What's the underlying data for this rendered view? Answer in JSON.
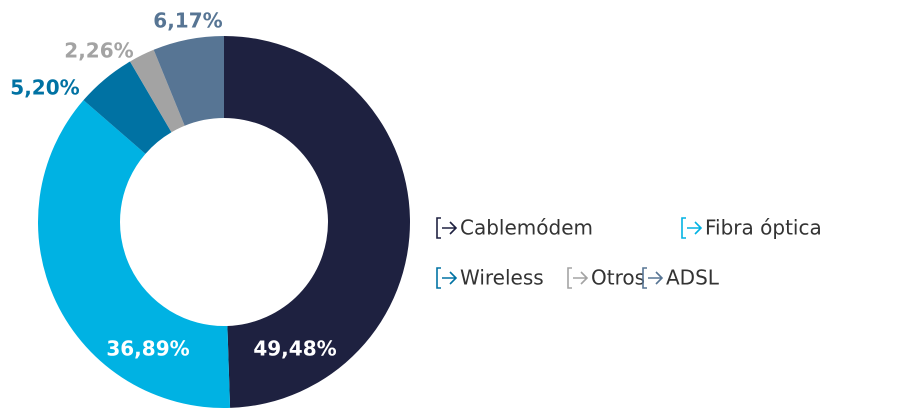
{
  "chart_data": {
    "type": "pie",
    "categories": [
      "Cablemódem",
      "Fibra óptica",
      "Wireless",
      "Otros",
      "ADSL"
    ],
    "values": [
      49.48,
      36.89,
      5.2,
      2.26,
      6.17
    ],
    "value_labels": [
      "49,48%",
      "36,89%",
      "5,20%",
      "2,26%",
      "6,17%"
    ],
    "colors": [
      "#1e2140",
      "#00b2e3",
      "#0072a3",
      "#a3a3a3",
      "#577594"
    ]
  }
}
